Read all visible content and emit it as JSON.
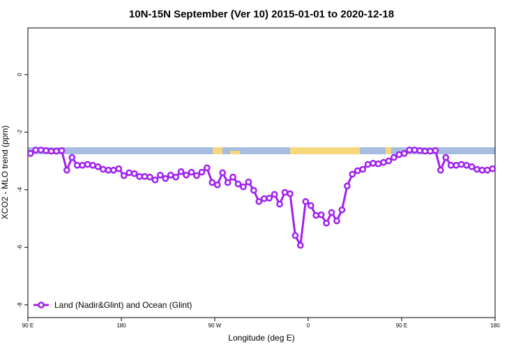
{
  "chart_data": {
    "type": "line",
    "title": "10N-15N September (Ver 10)   2015-01-01 to 2020-12-18",
    "x_label": "Longitude (deg E)",
    "y_label": "XCO2 - MLO trend (ppm)",
    "x": [
      92.5,
      97.5,
      102.5,
      107.5,
      112.5,
      117.5,
      122.5,
      127.5,
      132.5,
      137.5,
      142.5,
      147.5,
      152.5,
      157.5,
      162.5,
      167.5,
      172.5,
      177.5,
      182.5,
      187.5,
      192.5,
      197.5,
      202.5,
      207.5,
      212.5,
      217.5,
      222.5,
      227.5,
      232.5,
      237.5,
      242.5,
      247.5,
      252.5,
      257.5,
      262.5,
      267.5,
      272.5,
      277.5,
      282.5,
      287.5,
      292.5,
      297.5,
      302.5,
      307.5,
      312.5,
      317.5,
      322.5,
      327.5,
      332.5,
      337.5,
      342.5,
      347.5,
      352.5,
      357.5,
      362.5,
      367.5,
      372.5,
      377.5,
      382.5,
      387.5,
      392.5,
      397.5,
      402.5,
      407.5,
      412.5,
      417.5,
      422.5,
      427.5,
      432.5,
      437.5,
      442.5,
      447.5,
      452.5,
      457.5,
      462.5,
      467.5,
      472.5,
      477.5,
      482.5,
      487.5,
      492.5,
      497.5,
      502.5,
      507.5,
      512.5,
      517.5,
      522.5,
      527.5,
      532.5,
      537.5
    ],
    "series": [
      {
        "name": "Land (Nadir&Glint) and Ocean (Glint)",
        "color": "#a020f0",
        "values": [
          -2.74,
          -2.62,
          -2.62,
          -2.64,
          -2.66,
          -2.66,
          -2.64,
          -3.32,
          -2.88,
          -3.15,
          -3.15,
          -3.12,
          -3.15,
          -3.2,
          -3.29,
          -3.32,
          -3.32,
          -3.27,
          -3.51,
          -3.41,
          -3.44,
          -3.54,
          -3.54,
          -3.56,
          -3.66,
          -3.49,
          -3.61,
          -3.49,
          -3.56,
          -3.37,
          -3.49,
          -3.39,
          -3.51,
          -3.39,
          -3.24,
          -3.75,
          -3.83,
          -3.41,
          -3.75,
          -3.56,
          -3.8,
          -3.9,
          -3.73,
          -4.02,
          -4.41,
          -4.31,
          -4.29,
          -4.16,
          -4.5,
          -4.09,
          -4.14,
          -5.59,
          -5.93,
          -4.41,
          -4.55,
          -4.89,
          -4.87,
          -5.16,
          -4.79,
          -5.08,
          -4.7,
          -3.87,
          -3.46,
          -3.34,
          -3.29,
          -3.12,
          -3.08,
          -3.1,
          -3.05,
          -3.0,
          -2.88,
          -2.78,
          -2.74,
          -2.62,
          -2.62,
          -2.64,
          -2.66,
          -2.66,
          -2.64,
          -3.32,
          -2.88,
          -3.15,
          -3.15,
          -3.12,
          -3.15,
          -3.2,
          -3.29,
          -3.32,
          -3.32,
          -3.27
        ]
      }
    ],
    "xlim": [
      90,
      540
    ],
    "xticks": [
      {
        "value": 90,
        "label": "90 E"
      },
      180,
      {
        "value": 270,
        "label": "90 W"
      },
      {
        "value": 360,
        "label": "0"
      },
      {
        "value": 450,
        "label": "90 E"
      },
      {
        "value": 540,
        "label": "180"
      }
    ],
    "ylim": [
      -8.44,
      1.62
    ],
    "yticks": [
      -8,
      -6,
      -4,
      -2,
      0
    ],
    "legend": "bottom-left"
  }
}
